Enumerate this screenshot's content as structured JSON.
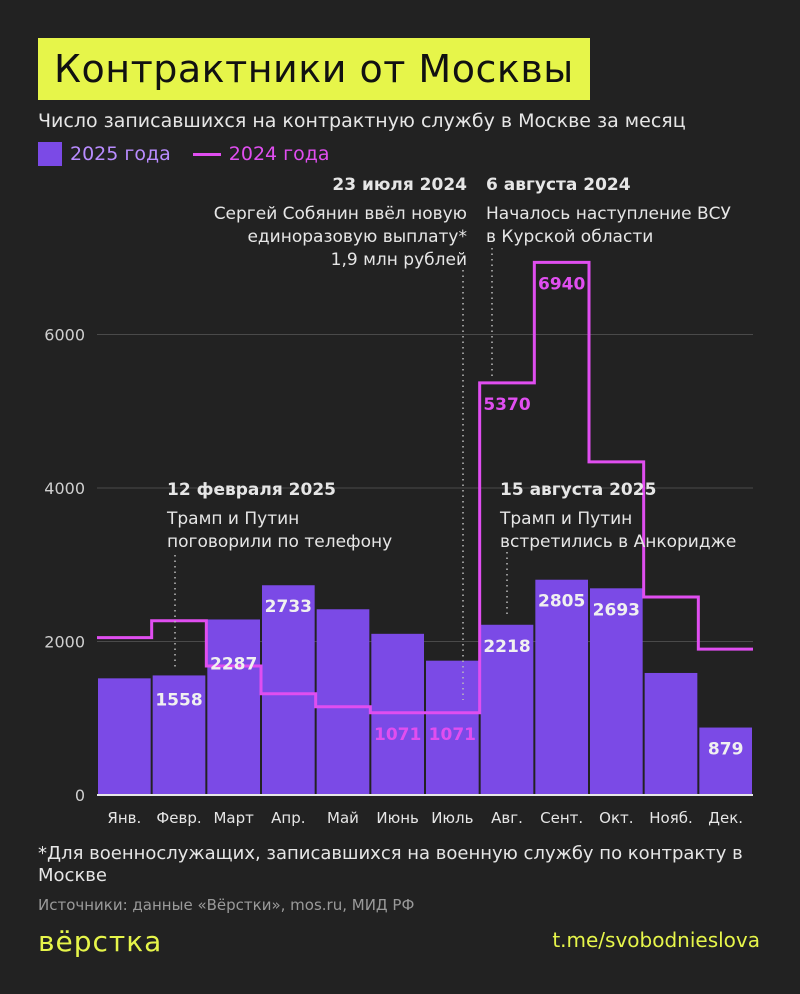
{
  "title": "Контрактники от Москвы",
  "subtitle": "Число записавшихся на контрактную службу в Москве за месяц",
  "legend": [
    "2025 года",
    "2024 года"
  ],
  "colors": {
    "bar_2025": "#7b4ae6",
    "line_2024": "#e04ef0",
    "accent": "#e6f54a",
    "background": "#222222"
  },
  "chart_data": {
    "type": "bar",
    "categories": [
      "Янв.",
      "Февр.",
      "Март",
      "Апр.",
      "Май",
      "Июнь",
      "Июль",
      "Авг.",
      "Сент.",
      "Окт.",
      "Нояб.",
      "Дек."
    ],
    "series": [
      {
        "name": "2025 года",
        "type": "bar",
        "values": [
          1520,
          1558,
          2287,
          2733,
          2420,
          2100,
          1750,
          2218,
          2805,
          2693,
          1590,
          879
        ],
        "labels": [
          null,
          "1558",
          "2287",
          "2733",
          null,
          null,
          null,
          "2218",
          "2805",
          "2693",
          null,
          "879"
        ]
      },
      {
        "name": "2024 года",
        "type": "step-line",
        "values": [
          2050,
          2270,
          1680,
          1320,
          1150,
          1071,
          1071,
          5370,
          6940,
          4340,
          2580,
          1900
        ],
        "labels": [
          null,
          null,
          null,
          null,
          null,
          "1071",
          "1071",
          "5370",
          "6940",
          null,
          null,
          null
        ]
      }
    ],
    "yticks": [
      0,
      2000,
      4000,
      6000
    ],
    "ylim": [
      0,
      7600
    ],
    "grid": true,
    "annotations": [
      {
        "date": "23 июля 2024",
        "text": [
          "Сергей Собянин ввёл новую",
          "единоразовую выплату*",
          "1,9 млн рублей"
        ]
      },
      {
        "date": "6 августа 2024",
        "text": [
          "Началось наступление ВСУ",
          "в Курской области"
        ]
      },
      {
        "date": "12 февраля 2025",
        "text": [
          "Трамп и Путин",
          "поговорили по телефону"
        ]
      },
      {
        "date": "15 августа 2025",
        "text": [
          "Трамп и Путин",
          "встретились в Анкоридже"
        ]
      }
    ]
  },
  "footnote": "*Для военнослужащих, записавшихся на военную службу по контракту в Москве",
  "sources": "Источники: данные «Вёрстки», mos.ru, МИД РФ",
  "logo": "вёрстка",
  "channel": "t.me/svobodnieslova"
}
